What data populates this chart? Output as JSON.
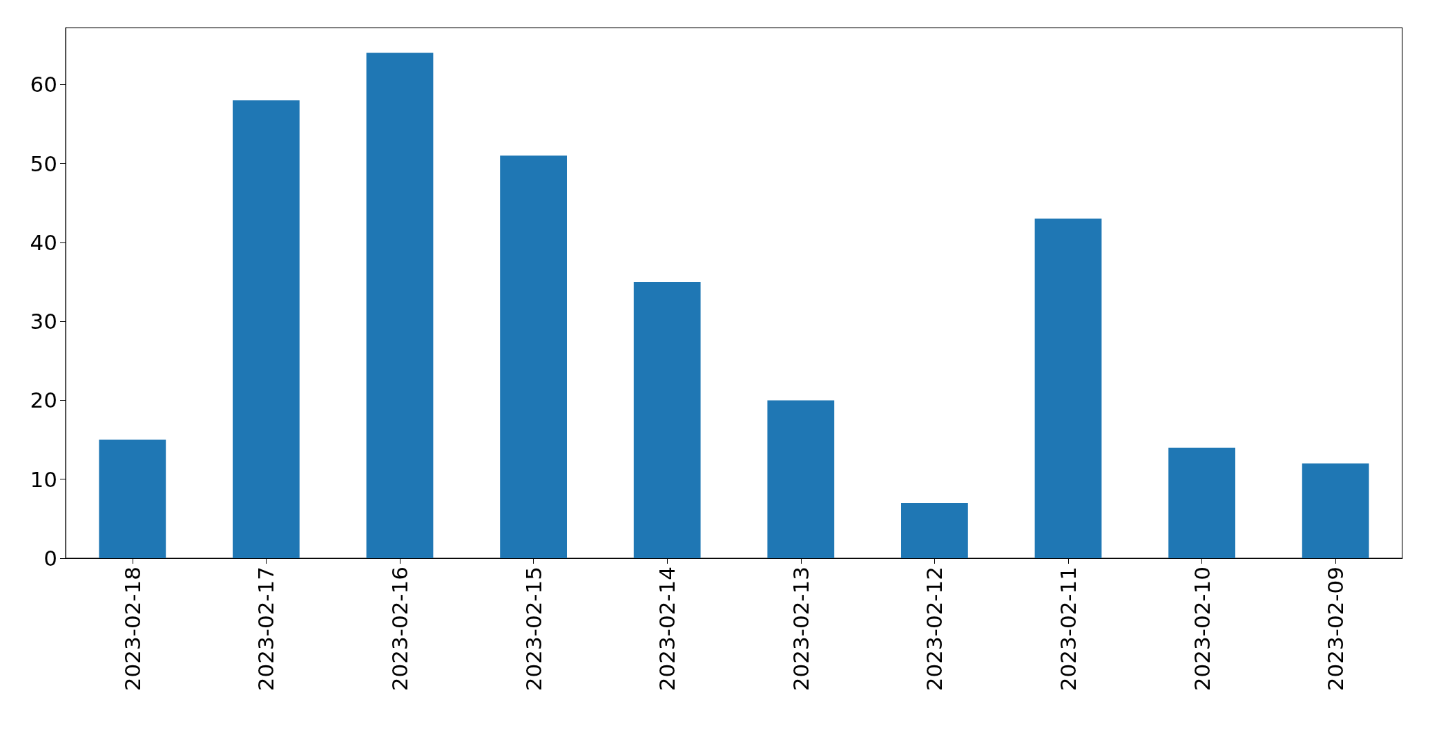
{
  "chart_data": {
    "type": "bar",
    "categories": [
      "2023-02-18",
      "2023-02-17",
      "2023-02-16",
      "2023-02-15",
      "2023-02-14",
      "2023-02-13",
      "2023-02-12",
      "2023-02-11",
      "2023-02-10",
      "2023-02-09"
    ],
    "values": [
      15,
      58,
      64,
      51,
      35,
      20,
      7,
      43,
      14,
      12
    ],
    "color": "#1f77b4",
    "ylim": [
      0,
      67.2
    ],
    "yticks": [
      0,
      10,
      20,
      30,
      40,
      50,
      60
    ]
  }
}
